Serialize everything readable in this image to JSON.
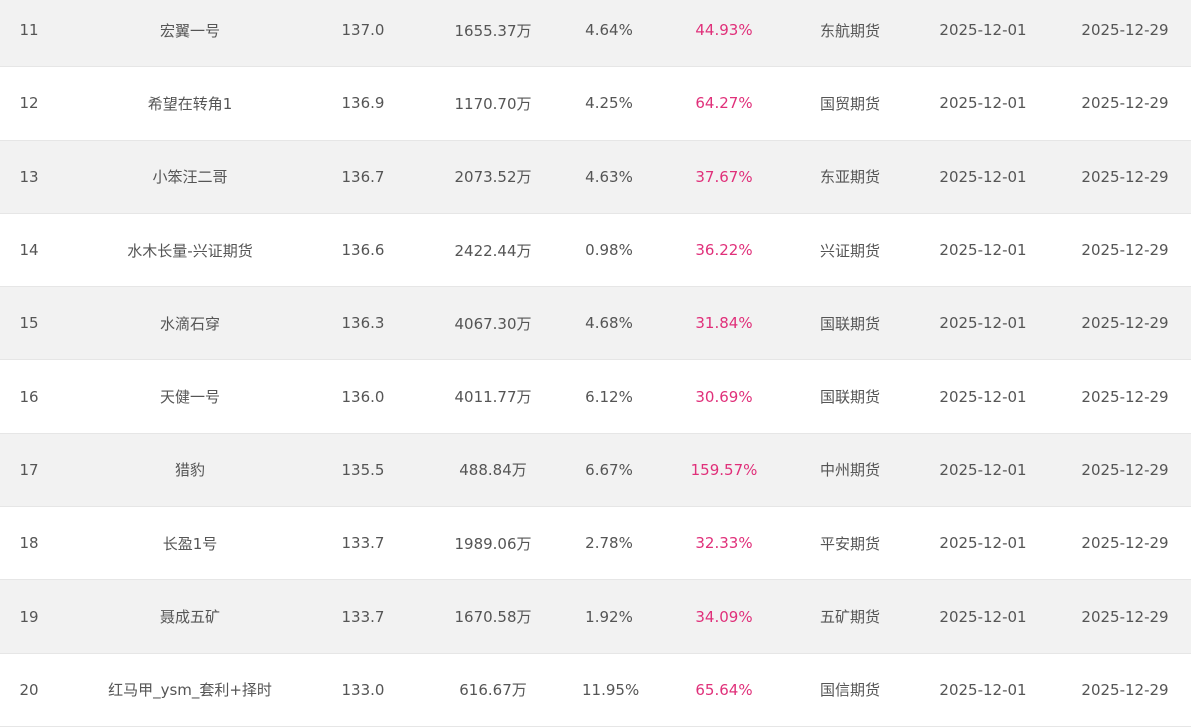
{
  "accent_color": "#e0307a",
  "rows": [
    {
      "rank": "11",
      "name": "宏翼一号",
      "score": "137.0",
      "equity": "1655.37万",
      "drawdown": "4.64%",
      "return": "44.93%",
      "broker": "东航期货",
      "start": "2025-12-01",
      "end": "2025-12-29"
    },
    {
      "rank": "12",
      "name": "希望在转角1",
      "score": "136.9",
      "equity": "1170.70万",
      "drawdown": "4.25%",
      "return": "64.27%",
      "broker": "国贸期货",
      "start": "2025-12-01",
      "end": "2025-12-29"
    },
    {
      "rank": "13",
      "name": "小笨汪二哥",
      "score": "136.7",
      "equity": "2073.52万",
      "drawdown": "4.63%",
      "return": "37.67%",
      "broker": "东亚期货",
      "start": "2025-12-01",
      "end": "2025-12-29"
    },
    {
      "rank": "14",
      "name": "水木长量-兴证期货",
      "score": "136.6",
      "equity": "2422.44万",
      "drawdown": "0.98%",
      "return": "36.22%",
      "broker": "兴证期货",
      "start": "2025-12-01",
      "end": "2025-12-29"
    },
    {
      "rank": "15",
      "name": "水滴石穿",
      "score": "136.3",
      "equity": "4067.30万",
      "drawdown": "4.68%",
      "return": "31.84%",
      "broker": "国联期货",
      "start": "2025-12-01",
      "end": "2025-12-29"
    },
    {
      "rank": "16",
      "name": "天健一号",
      "score": "136.0",
      "equity": "4011.77万",
      "drawdown": "6.12%",
      "return": "30.69%",
      "broker": "国联期货",
      "start": "2025-12-01",
      "end": "2025-12-29"
    },
    {
      "rank": "17",
      "name": "猎豹",
      "score": "135.5",
      "equity": "488.84万",
      "drawdown": "6.67%",
      "return": "159.57%",
      "broker": "中州期货",
      "start": "2025-12-01",
      "end": "2025-12-29"
    },
    {
      "rank": "18",
      "name": "长盈1号",
      "score": "133.7",
      "equity": "1989.06万",
      "drawdown": "2.78%",
      "return": "32.33%",
      "broker": "平安期货",
      "start": "2025-12-01",
      "end": "2025-12-29"
    },
    {
      "rank": "19",
      "name": "聂成五矿",
      "score": "133.7",
      "equity": "1670.58万",
      "drawdown": "1.92%",
      "return": "34.09%",
      "broker": "五矿期货",
      "start": "2025-12-01",
      "end": "2025-12-29"
    },
    {
      "rank": "20",
      "name": "红马甲_ysm_套利+择时",
      "score": "133.0",
      "equity": "616.67万",
      "drawdown": "11.95%",
      "return": "65.64%",
      "broker": "国信期货",
      "start": "2025-12-01",
      "end": "2025-12-29"
    }
  ]
}
